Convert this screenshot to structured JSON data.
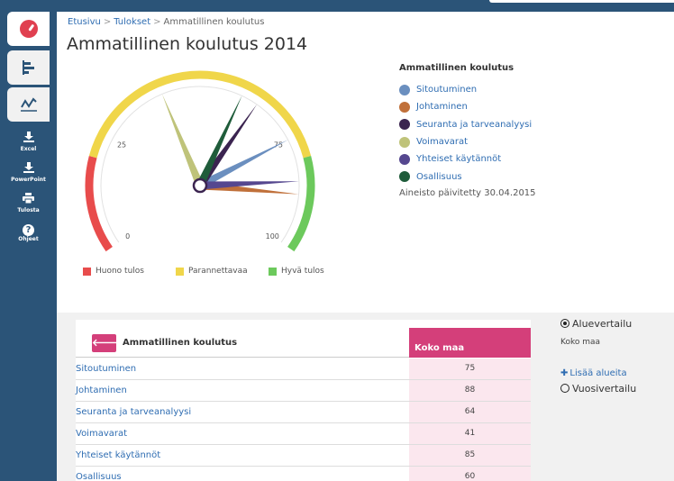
{
  "sidebar": {
    "tabs": [
      {
        "icon": "gauge-icon"
      },
      {
        "icon": "bar-chart-icon"
      },
      {
        "icon": "trend-icon"
      }
    ],
    "actions": [
      {
        "icon": "download-icon",
        "label": "Excel"
      },
      {
        "icon": "download-icon",
        "label": "PowerPoint"
      },
      {
        "icon": "printer-icon",
        "label": "Tulosta"
      },
      {
        "icon": "help-icon",
        "label": "Ohjeet",
        "glyph": "?"
      }
    ]
  },
  "breadcrumb": {
    "items": [
      "Etusivu",
      "Tulokset",
      "Ammatillinen koulutus"
    ],
    "separator": ">"
  },
  "page_title": "Ammatillinen koulutus 2014",
  "chart_data": {
    "type": "gauge",
    "range": [
      0,
      100
    ],
    "tick_labels": [
      "0",
      "25",
      "75",
      "100"
    ],
    "bands": [
      {
        "label": "Huono tulos",
        "from": 0,
        "to": 20,
        "color": "#e84c4c"
      },
      {
        "label": "Parannettavaa",
        "from": 20,
        "to": 80,
        "color": "#f0d64a"
      },
      {
        "label": "Hyvä tulos",
        "from": 80,
        "to": 100,
        "color": "#6cc95c"
      }
    ],
    "legend_title": "Ammatillinen koulutus",
    "series": [
      {
        "name": "Sitoutuminen",
        "value": 75,
        "color": "#6b8fbf"
      },
      {
        "name": "Johtaminen",
        "value": 88,
        "color": "#c0703a"
      },
      {
        "name": "Seuranta ja tarveanalyysi",
        "value": 64,
        "color": "#3b2450"
      },
      {
        "name": "Voimavarat",
        "value": 41,
        "color": "#bfc37a"
      },
      {
        "name": "Yhteiset käytännöt",
        "value": 85,
        "color": "#55478f"
      },
      {
        "name": "Osallisuus",
        "value": 60,
        "color": "#1f5c3a"
      }
    ],
    "updated_text": "Aineisto päivitetty 30.04.2015"
  },
  "table": {
    "title": "Ammatillinen koulutus",
    "back_glyph": "🡐",
    "column": "Koko maa",
    "rows": [
      {
        "name": "Sitoutuminen",
        "value": "75"
      },
      {
        "name": "Johtaminen",
        "value": "88"
      },
      {
        "name": "Seuranta ja tarveanalyysi",
        "value": "64"
      },
      {
        "name": "Voimavarat",
        "value": "41"
      },
      {
        "name": "Yhteiset käytännöt",
        "value": "85"
      },
      {
        "name": "Osallisuus",
        "value": "60"
      }
    ]
  },
  "options": {
    "area_label": "Aluevertailu",
    "area_value": "Koko maa",
    "add_label": "Lisää alueita",
    "year_label": "Vuosivertailu"
  },
  "colors": {
    "sidebar": "#2b5478",
    "accent": "#d43f7a",
    "link": "#2f6db2"
  }
}
